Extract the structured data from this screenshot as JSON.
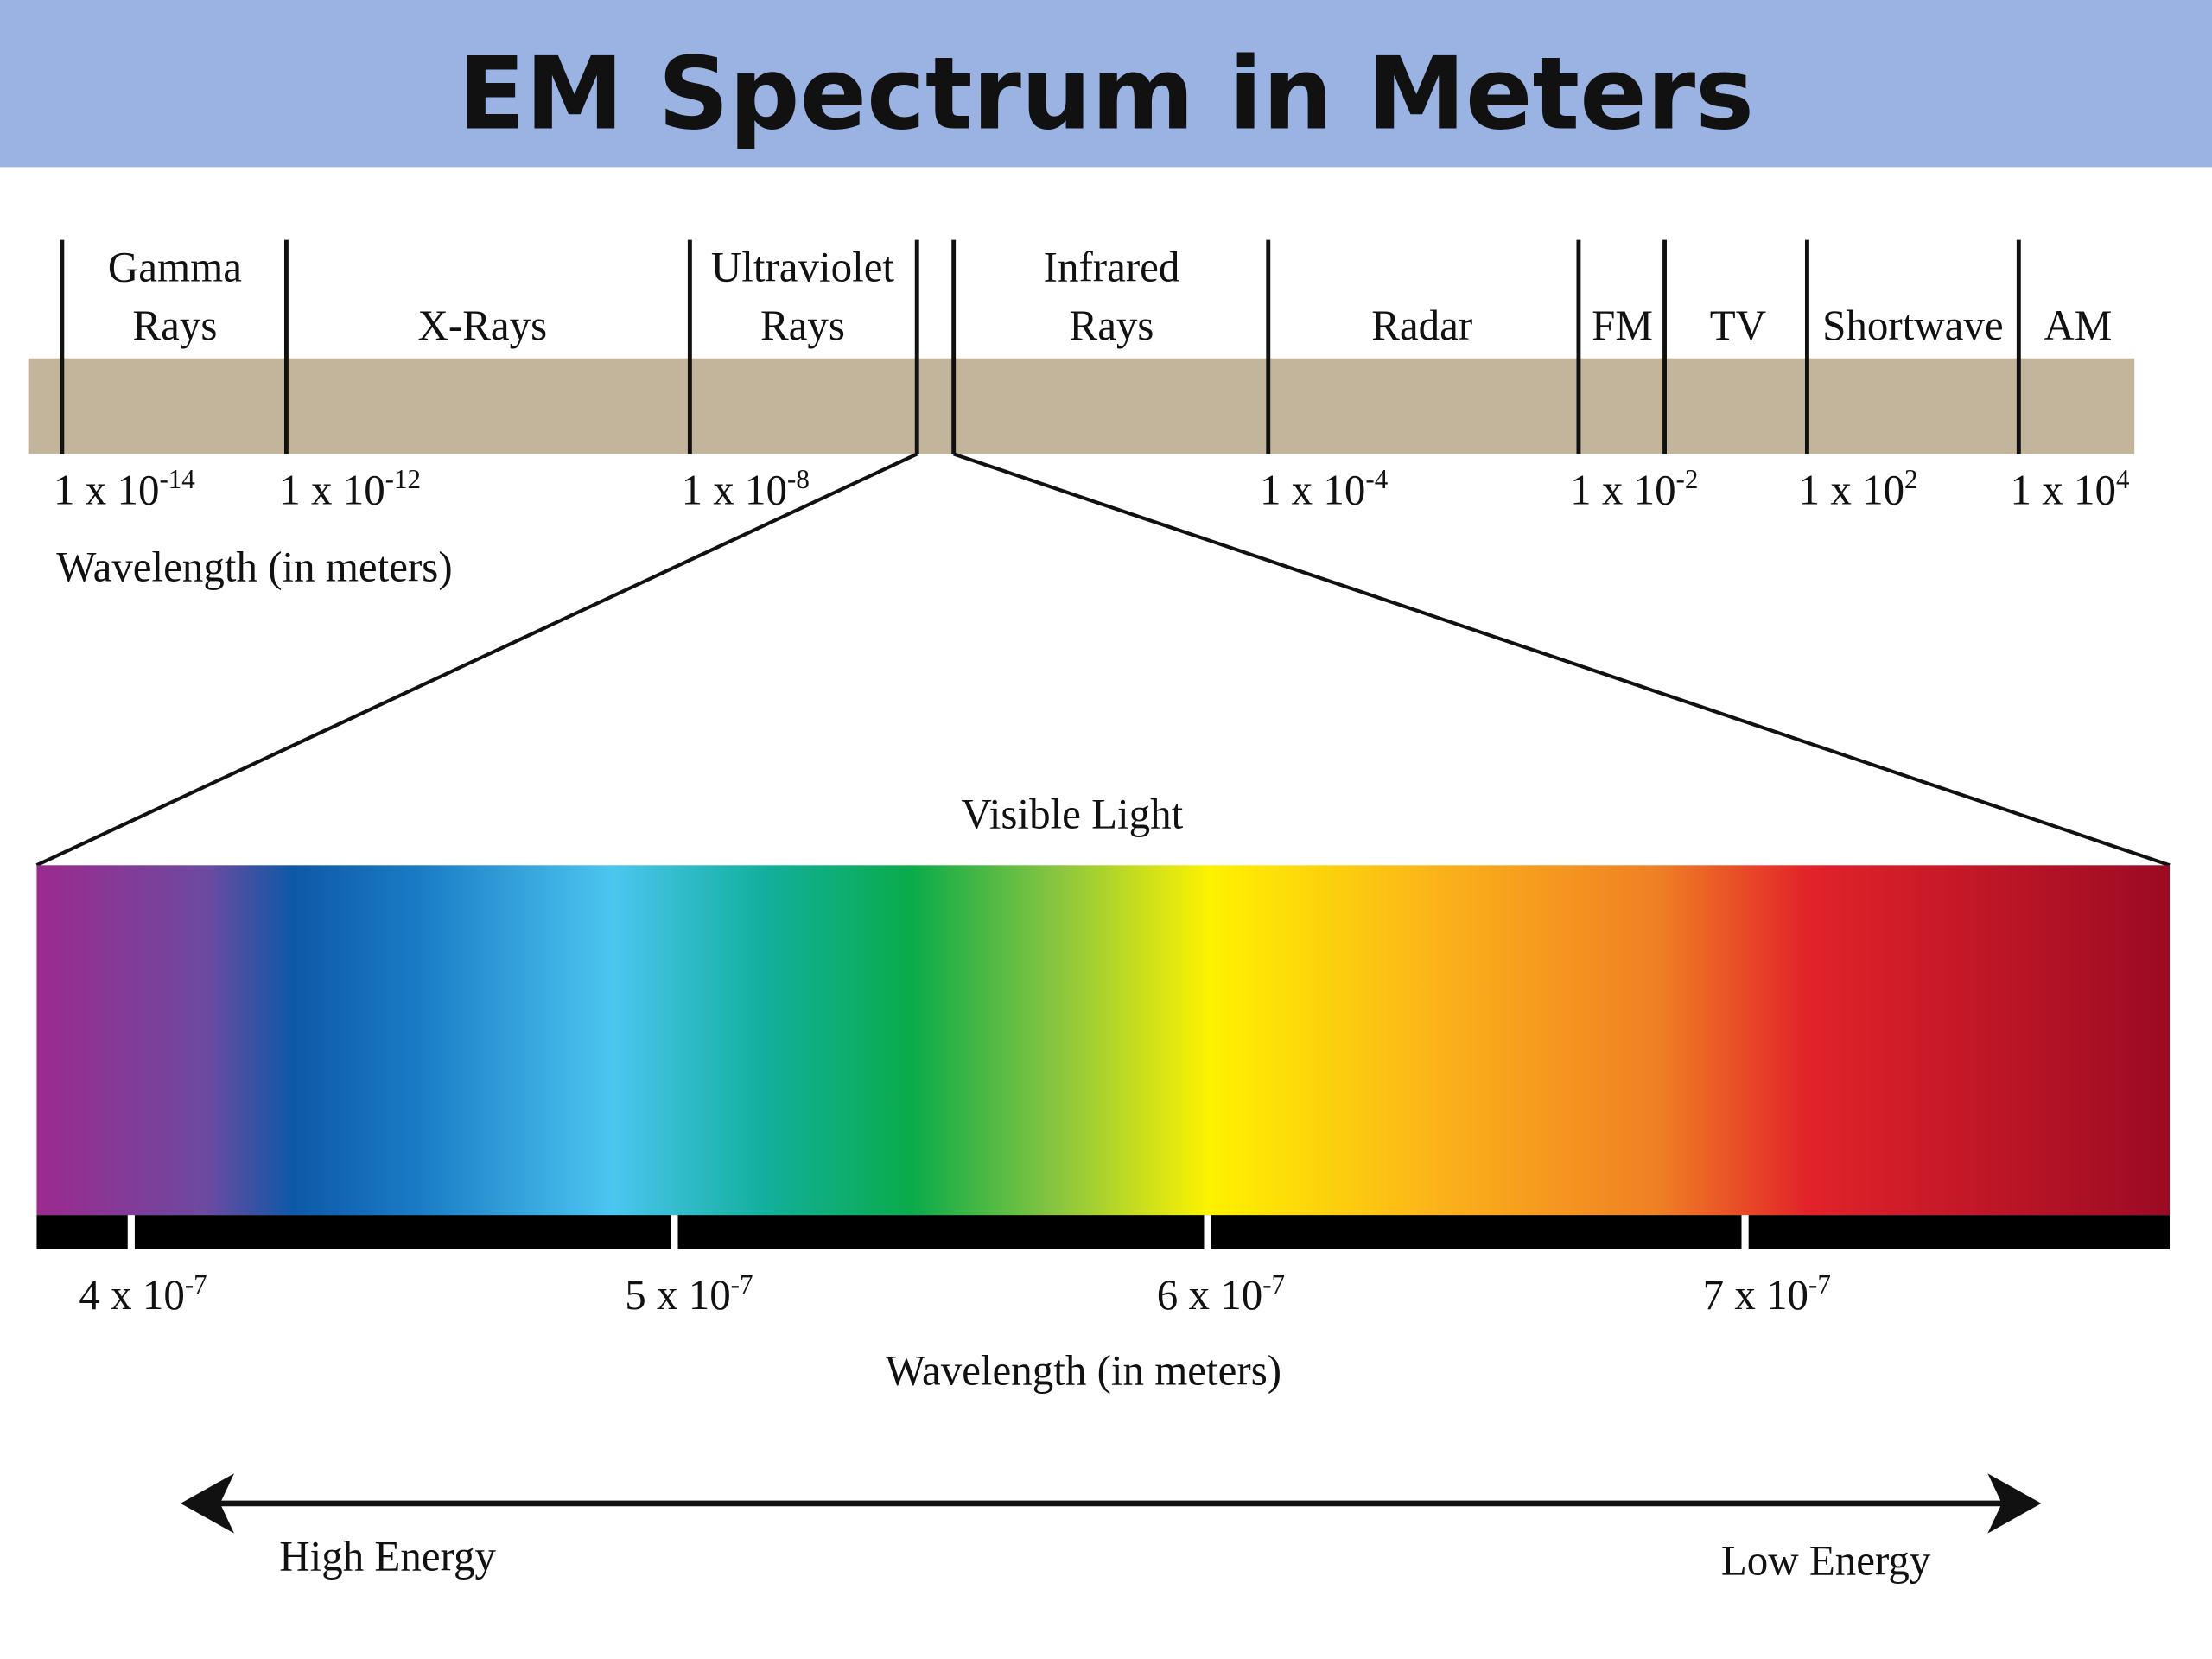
{
  "header": {
    "title": "EM Spectrum in Meters"
  },
  "spectrum": {
    "bands": [
      {
        "lines": [
          "Gamma",
          "Rays"
        ]
      },
      {
        "lines": [
          "X-Rays"
        ]
      },
      {
        "lines": [
          "Ultraviolet",
          "Rays"
        ]
      },
      {
        "lines": [
          "Infrared",
          "Rays"
        ]
      },
      {
        "lines": [
          "Radar"
        ]
      },
      {
        "lines": [
          "FM"
        ]
      },
      {
        "lines": [
          "TV"
        ]
      },
      {
        "lines": [
          "Shortwave"
        ]
      },
      {
        "lines": [
          "AM"
        ]
      }
    ],
    "ticks": [
      {
        "base": "1 x 10",
        "exp": "-14"
      },
      {
        "base": "1 x 10",
        "exp": "-12"
      },
      {
        "base": "1 x 10",
        "exp": "-8"
      },
      {
        "base": "1 x 10",
        "exp": "-4"
      },
      {
        "base": "1 x 10",
        "exp": "-2"
      },
      {
        "base": "1 x 10",
        "exp": "2"
      },
      {
        "base": "1 x 10",
        "exp": "4"
      }
    ],
    "axis_label": "Wavelength (in meters)"
  },
  "visible": {
    "title": "Visible Light",
    "ticks": [
      {
        "base": "4 x 10",
        "exp": "-7"
      },
      {
        "base": "5 x 10",
        "exp": "-7"
      },
      {
        "base": "6 x 10",
        "exp": "-7"
      },
      {
        "base": "7 x 10",
        "exp": "-7"
      }
    ],
    "axis_label": "Wavelength (in meters)"
  },
  "energy": {
    "high": "High Energy",
    "low": "Low Energy"
  }
}
